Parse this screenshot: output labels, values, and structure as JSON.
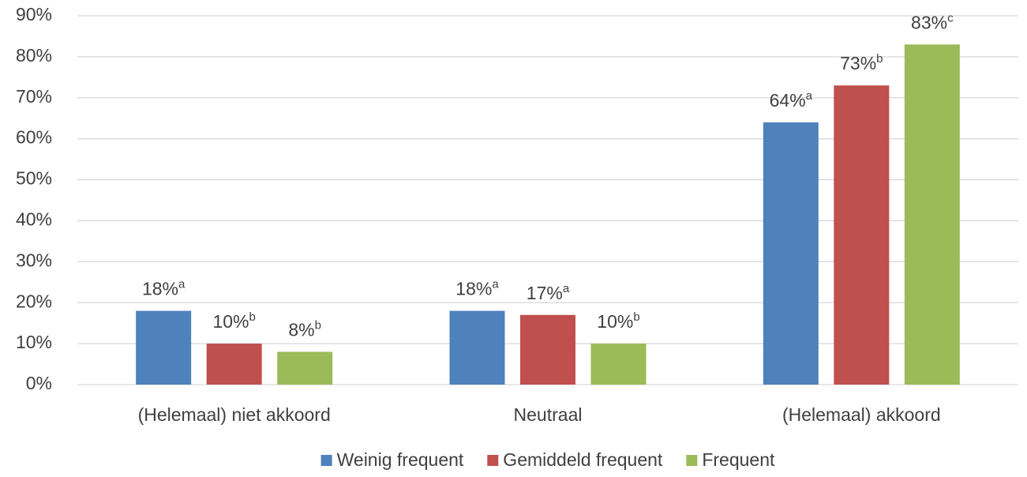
{
  "chart_data": {
    "type": "bar",
    "categories": [
      "(Helemaal) niet akkoord",
      "Neutraal",
      "(Helemaal) akkoord"
    ],
    "series": [
      {
        "name": "Weinig frequent",
        "color": "#4f81bd",
        "values": [
          18,
          18,
          64
        ],
        "value_labels": [
          "18%",
          "18%",
          "64%"
        ],
        "letters": [
          "a",
          "a",
          "a"
        ]
      },
      {
        "name": "Gemiddeld frequent",
        "color": "#c0504d",
        "values": [
          10,
          17,
          73
        ],
        "value_labels": [
          "10%",
          "17%",
          "73%"
        ],
        "letters": [
          "b",
          "a",
          "b"
        ]
      },
      {
        "name": "Frequent",
        "color": "#9bbb59",
        "values": [
          8,
          10,
          83
        ],
        "value_labels": [
          "8%",
          "10%",
          "83%"
        ],
        "letters": [
          "b",
          "b",
          "c"
        ]
      }
    ],
    "ylim": [
      0,
      90
    ],
    "yticks": [
      {
        "value": 0,
        "label": "0%"
      },
      {
        "value": 10,
        "label": "10%"
      },
      {
        "value": 20,
        "label": "20%"
      },
      {
        "value": 30,
        "label": "30%"
      },
      {
        "value": 40,
        "label": "40%"
      },
      {
        "value": 50,
        "label": "50%"
      },
      {
        "value": 60,
        "label": "60%"
      },
      {
        "value": 70,
        "label": "70%"
      },
      {
        "value": 80,
        "label": "80%"
      },
      {
        "value": 90,
        "label": "90%"
      }
    ],
    "grid": true,
    "legend": "bottom"
  }
}
